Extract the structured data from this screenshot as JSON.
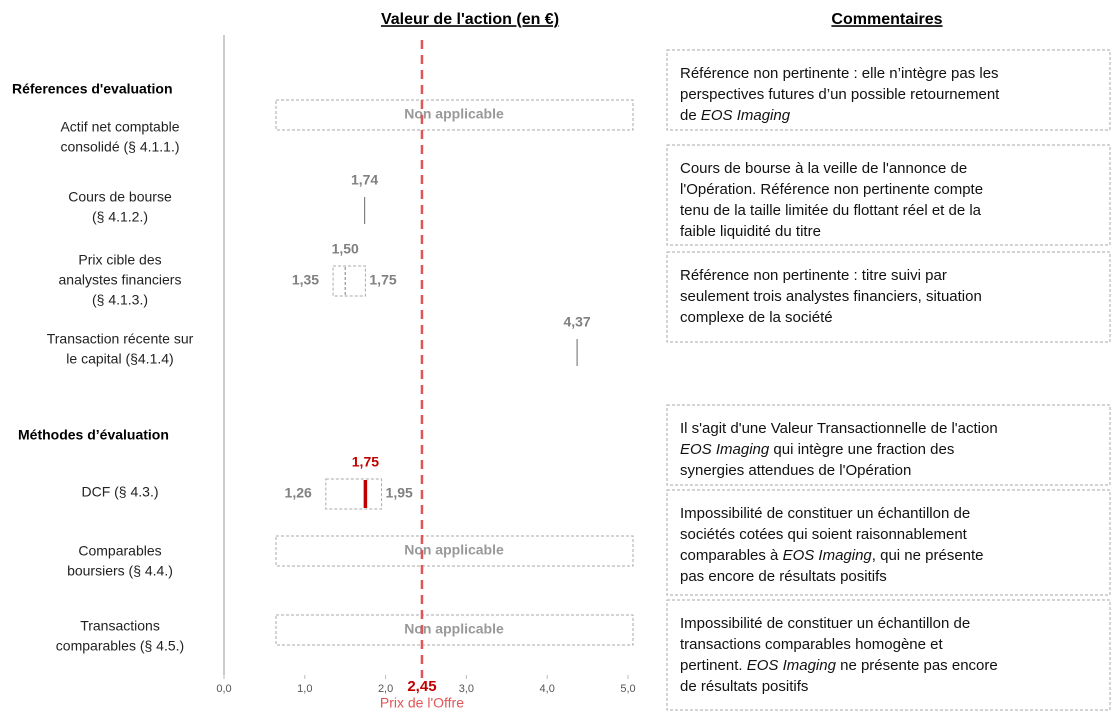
{
  "chart_data": {
    "type": "range",
    "title": "Valeur de l'action  (en €)",
    "comments_title": "Commentaires",
    "sections": [
      "Réferences d'evaluation",
      "Méthodes d’évaluation"
    ],
    "rows": [
      {
        "label": [
          "Actif net comptable",
          "consolidé (§ 4.1.1.)"
        ],
        "status": "Non applicable"
      },
      {
        "label": [
          "Cours de bourse",
          "(§ 4.1.2.)"
        ],
        "values": {
          "point": 1.74
        },
        "value_labels": {
          "point": "1,74"
        }
      },
      {
        "label": [
          "Prix cible des",
          "analystes financiers",
          "(§ 4.1.3.)"
        ],
        "values": {
          "low": 1.35,
          "mid": 1.5,
          "high": 1.75
        },
        "value_labels": {
          "low": "1,35",
          "mid": "1,50",
          "high": "1,75"
        }
      },
      {
        "label": [
          "Transaction récente sur",
          "le capital (§4.1.4)"
        ],
        "values": {
          "point": 4.37
        },
        "value_labels": {
          "point": "4,37"
        }
      },
      {
        "label": [
          "DCF (§ 4.3.)"
        ],
        "values": {
          "low": 1.26,
          "mid": 1.75,
          "high": 1.95
        },
        "value_labels": {
          "low": "1,26",
          "mid": "1,75",
          "high": "1,95"
        },
        "mid_color": "#c00000"
      },
      {
        "label": [
          "Comparables",
          "boursiers (§ 4.4.)"
        ],
        "status": "Non applicable"
      },
      {
        "label": [
          "Transactions",
          "comparables (§ 4.5.)"
        ],
        "status": "Non applicable"
      }
    ],
    "xlim": [
      0,
      5
    ],
    "xticks": [
      {
        "value": 0,
        "label": "0,0"
      },
      {
        "value": 1,
        "label": "1,0"
      },
      {
        "value": 2,
        "label": "2,0"
      },
      {
        "value": 3,
        "label": "3,0"
      },
      {
        "value": 4,
        "label": "4,0"
      },
      {
        "value": 5,
        "label": "5,0"
      }
    ],
    "offer": {
      "value": 2.45,
      "value_label": "2,45",
      "label": "Prix de l'Offre",
      "color": "#e05555"
    },
    "comments": [
      [
        [
          "Référence non pertinente : elle n’intègre pas les"
        ],
        [
          "perspectives futures d’un possible retournement"
        ],
        [
          "de ",
          {
            "text": "EOS Imaging",
            "italic": true
          }
        ]
      ],
      [
        [
          "Cours de bourse à la veille de l'annonce de"
        ],
        [
          "l'Opération. Référence non pertinente compte"
        ],
        [
          "tenu de la taille limitée du flottant réel et de la"
        ],
        [
          "faible liquidité  du titre"
        ]
      ],
      [
        [
          "Référence non pertinente : titre suivi par"
        ],
        [
          "seulement trois analystes financiers,  situation"
        ],
        [
          "complexe de la société"
        ]
      ],
      [
        [
          "Il s'agit d'une Valeur Transactionnelle de l'action"
        ],
        [
          {
            "text": "EOS Imaging",
            "italic": true
          },
          " qui intègre une fraction des"
        ],
        [
          "synergies attendues de l'Opération"
        ]
      ],
      [
        [
          "Impossibilité de constituer un échantillon de"
        ],
        [
          "sociétés cotées qui soient raisonnablement"
        ],
        [
          "comparables à ",
          {
            "text": "EOS Imaging",
            "italic": true
          },
          ", qui ne présente"
        ],
        [
          "pas encore de résultats positifs"
        ]
      ],
      [
        [
          "Impossibilité de constituer un échantillon de"
        ],
        [
          "transactions comparables homogène et"
        ],
        [
          "pertinent. ",
          {
            "text": "EOS Imaging",
            "italic": true
          },
          " ne présente pas encore"
        ],
        [
          "de résultats positifs"
        ]
      ]
    ]
  }
}
